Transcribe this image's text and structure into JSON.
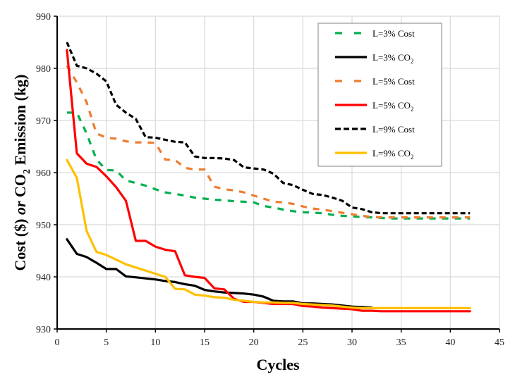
{
  "chart_data": {
    "type": "line",
    "title": "",
    "xlabel": "Cycles",
    "ylabel_parts": [
      "Cost ($) ",
      "or",
      " CO",
      "2",
      " Emission (kg)"
    ],
    "xlim": [
      0,
      45
    ],
    "ylim": [
      930,
      990
    ],
    "xticks": [
      0,
      5,
      10,
      15,
      20,
      25,
      30,
      35,
      40,
      45
    ],
    "yticks": [
      930,
      940,
      950,
      960,
      970,
      980,
      990
    ],
    "grid": true,
    "legend_position": "top-right",
    "series": [
      {
        "name": "L=3% Cost",
        "label_main": "L=3% Cost",
        "label_sub": "",
        "color": "#00b050",
        "style": "dash",
        "x": [
          1,
          2,
          3,
          4,
          5,
          6,
          7,
          8,
          9,
          10,
          11,
          12,
          13,
          14,
          15,
          16,
          17,
          18,
          19,
          20,
          21,
          22,
          23,
          24,
          25,
          26,
          27,
          28,
          29,
          30,
          31,
          32,
          33,
          34,
          35,
          36,
          37,
          38,
          39,
          40,
          41,
          42
        ],
        "y": [
          971.5,
          971.5,
          967.5,
          962.5,
          960.5,
          960.4,
          958.5,
          958.0,
          957.5,
          956.8,
          956.2,
          955.9,
          955.6,
          955.2,
          955.0,
          954.8,
          954.7,
          954.5,
          954.4,
          954.3,
          953.6,
          953.3,
          952.9,
          952.6,
          952.4,
          952.3,
          952.2,
          951.9,
          951.7,
          951.6,
          951.5,
          951.4,
          951.3,
          951.2,
          951.2,
          951.2,
          951.2,
          951.2,
          951.2,
          951.2,
          951.2,
          951.2
        ]
      },
      {
        "name": "L=3% CO2",
        "label_main": "L=3%  CO",
        "label_sub": "2",
        "color": "#000000",
        "style": "solid",
        "x": [
          1,
          2,
          3,
          4,
          5,
          6,
          7,
          8,
          9,
          10,
          11,
          12,
          13,
          14,
          15,
          16,
          17,
          18,
          19,
          20,
          21,
          22,
          23,
          24,
          25,
          26,
          27,
          28,
          29,
          30,
          31,
          32
        ],
        "y": [
          947.2,
          944.4,
          943.8,
          942.7,
          941.5,
          941.5,
          940.1,
          939.9,
          939.7,
          939.5,
          939.2,
          939.0,
          938.6,
          938.3,
          937.5,
          937.2,
          937.0,
          936.9,
          936.8,
          936.6,
          936.2,
          935.4,
          935.3,
          935.3,
          934.9,
          934.9,
          934.8,
          934.7,
          934.5,
          934.3,
          934.2,
          934.1
        ]
      },
      {
        "name": "L=5% Cost",
        "label_main": "L=5% Cost",
        "label_sub": "",
        "color": "#ed7d31",
        "style": "dash",
        "x": [
          1,
          2,
          3,
          4,
          5,
          6,
          7,
          8,
          9,
          10,
          11,
          12,
          13,
          14,
          15,
          16,
          17,
          18,
          19,
          20,
          21,
          22,
          23,
          24,
          25,
          26,
          27,
          28,
          29,
          30,
          31,
          32,
          33,
          34,
          35,
          36,
          37,
          38,
          39,
          40,
          41,
          42
        ],
        "y": [
          980.5,
          977.3,
          973.5,
          967.5,
          966.7,
          966.5,
          966.0,
          965.8,
          965.8,
          965.7,
          962.5,
          962.4,
          960.9,
          960.6,
          960.6,
          957.3,
          956.8,
          956.6,
          956.2,
          955.6,
          955.0,
          954.4,
          954.3,
          954.0,
          953.5,
          953.1,
          952.9,
          952.6,
          952.3,
          952.0,
          951.7,
          951.5,
          951.4,
          951.4,
          951.4,
          951.4,
          951.4,
          951.4,
          951.4,
          951.4,
          951.4,
          951.4
        ]
      },
      {
        "name": "L=5% CO2",
        "label_main": "L=5%  CO",
        "label_sub": "2",
        "color": "#ff0000",
        "style": "solid",
        "x": [
          1,
          2,
          3,
          4,
          5,
          6,
          7,
          8,
          9,
          10,
          11,
          12,
          13,
          14,
          15,
          16,
          17,
          18,
          19,
          20,
          21,
          22,
          23,
          24,
          25,
          26,
          27,
          28,
          29,
          30,
          31,
          32,
          33,
          34,
          35,
          36,
          37,
          38,
          39,
          40,
          41,
          42
        ],
        "y": [
          983.5,
          963.7,
          961.7,
          961.1,
          959.3,
          957.2,
          954.6,
          946.9,
          946.9,
          945.8,
          945.2,
          944.9,
          940.3,
          940.0,
          939.8,
          937.8,
          937.6,
          935.8,
          935.2,
          935.2,
          935.0,
          934.8,
          934.8,
          934.8,
          934.4,
          934.3,
          934.1,
          934.0,
          933.9,
          933.8,
          933.5,
          933.5,
          933.4,
          933.4,
          933.4,
          933.4,
          933.4,
          933.4,
          933.4,
          933.4,
          933.4,
          933.4
        ]
      },
      {
        "name": "L=9% Cost",
        "label_main": "L=9% Cost",
        "label_sub": "",
        "color": "#000000",
        "style": "shortdash",
        "x": [
          1,
          2,
          3,
          4,
          5,
          6,
          7,
          8,
          9,
          10,
          11,
          12,
          13,
          14,
          15,
          16,
          17,
          18,
          19,
          20,
          21,
          22,
          23,
          24,
          25,
          26,
          27,
          28,
          29,
          30,
          31,
          32,
          33,
          34,
          35,
          36,
          37,
          38,
          39,
          40,
          41,
          42
        ],
        "y": [
          985.0,
          980.5,
          980.0,
          979.0,
          977.5,
          973.0,
          971.5,
          970.3,
          966.8,
          966.7,
          966.3,
          965.9,
          965.8,
          963.1,
          962.8,
          962.8,
          962.7,
          962.4,
          961.0,
          960.8,
          960.6,
          959.8,
          958.0,
          957.6,
          956.7,
          955.9,
          955.7,
          955.2,
          954.6,
          953.3,
          953.0,
          952.4,
          952.2,
          952.2,
          952.2,
          952.2,
          952.2,
          952.2,
          952.2,
          952.2,
          952.2,
          952.2
        ]
      },
      {
        "name": "L=9% CO2",
        "label_main": "L=9%  CO",
        "label_sub": "2",
        "color": "#ffc000",
        "style": "solid",
        "x": [
          1,
          2,
          3,
          4,
          5,
          6,
          7,
          8,
          9,
          10,
          11,
          12,
          13,
          14,
          15,
          16,
          17,
          18,
          19,
          20,
          21,
          22,
          23,
          24,
          25,
          26,
          27,
          28,
          29,
          30,
          31,
          32,
          33,
          34,
          35,
          36,
          37,
          38,
          39,
          40,
          41,
          42
        ],
        "y": [
          962.4,
          959.0,
          948.8,
          944.8,
          944.2,
          943.3,
          942.4,
          941.8,
          941.2,
          940.6,
          940.0,
          937.7,
          937.6,
          936.6,
          936.4,
          936.1,
          936.0,
          935.6,
          935.4,
          935.2,
          935.1,
          935.1,
          935.0,
          935.0,
          934.8,
          934.7,
          934.6,
          934.5,
          934.3,
          934.1,
          934.0,
          934.0,
          934.0,
          934.0,
          934.0,
          934.0,
          934.0,
          934.0,
          934.0,
          934.0,
          934.0,
          934.0
        ]
      }
    ]
  }
}
